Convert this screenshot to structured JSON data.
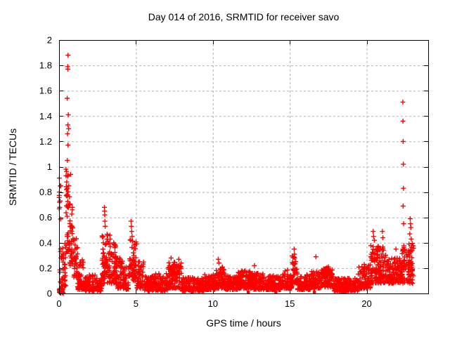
{
  "chart_data": {
    "type": "scatter",
    "title": "Day 014 of 2016, SRMTID for receiver savo",
    "xlabel": "GPS time / hours",
    "ylabel": "SRMTID / TECUs",
    "xlim": [
      0,
      24
    ],
    "ylim": [
      0,
      2
    ],
    "xticks": [
      0,
      5,
      10,
      15,
      20
    ],
    "yticks": [
      0,
      0.2,
      0.4,
      0.6,
      0.8,
      1,
      1.2,
      1.4,
      1.6,
      1.8,
      2
    ],
    "grid": true,
    "grid_color": "#b0b0b0",
    "legend": "none",
    "marker": {
      "shape": "plus",
      "color": "#ff0000",
      "size": 7
    },
    "series_name": "SRMTID",
    "seed": 20160114,
    "notable_points": [
      [
        0.02,
        0.91
      ],
      [
        0.02,
        0.8
      ],
      [
        0.03,
        0.72
      ],
      [
        0.04,
        0.68
      ],
      [
        0.58,
        1.88
      ],
      [
        0.56,
        1.79
      ],
      [
        0.57,
        1.77
      ],
      [
        0.53,
        1.54
      ],
      [
        0.6,
        1.41
      ],
      [
        0.57,
        1.33
      ],
      [
        0.62,
        1.3
      ],
      [
        0.55,
        1.26
      ],
      [
        0.58,
        1.17
      ],
      [
        0.54,
        1.05
      ],
      [
        0.45,
        0.98
      ],
      [
        0.75,
        0.94
      ],
      [
        0.5,
        0.88
      ],
      [
        0.63,
        0.85
      ],
      [
        0.48,
        0.82
      ],
      [
        0.52,
        0.78
      ],
      [
        2.95,
        0.68
      ],
      [
        2.96,
        0.65
      ],
      [
        2.97,
        0.62
      ],
      [
        2.98,
        0.57
      ],
      [
        3.0,
        0.53
      ],
      [
        3.3,
        0.46
      ],
      [
        3.32,
        0.43
      ],
      [
        3.55,
        0.4
      ],
      [
        4.68,
        0.57
      ],
      [
        4.7,
        0.53
      ],
      [
        4.72,
        0.49
      ],
      [
        4.75,
        0.45
      ],
      [
        4.65,
        0.42
      ],
      [
        7.28,
        0.28
      ],
      [
        7.78,
        0.27
      ],
      [
        8.65,
        0.01
      ],
      [
        10.35,
        0.27
      ],
      [
        10.4,
        0.24
      ],
      [
        12.3,
        0.01
      ],
      [
        12.7,
        0.22
      ],
      [
        14.1,
        0.01
      ],
      [
        15.28,
        0.35
      ],
      [
        15.3,
        0.31
      ],
      [
        15.32,
        0.28
      ],
      [
        16.6,
        0.01
      ],
      [
        16.7,
        0.29
      ],
      [
        18.4,
        0.01
      ],
      [
        18.6,
        0.01
      ],
      [
        20.42,
        0.49
      ],
      [
        20.45,
        0.45
      ],
      [
        20.5,
        0.42
      ],
      [
        21.02,
        0.49
      ],
      [
        21.05,
        0.44
      ],
      [
        21.9,
        0.35
      ],
      [
        22.35,
        1.51
      ],
      [
        22.36,
        1.36
      ],
      [
        22.37,
        1.2
      ],
      [
        22.38,
        1.02
      ],
      [
        22.39,
        0.83
      ],
      [
        22.37,
        0.69
      ],
      [
        22.4,
        0.55
      ],
      [
        22.83,
        0.59
      ],
      [
        22.85,
        0.55
      ],
      [
        22.87,
        0.52
      ],
      [
        22.8,
        0.47
      ],
      [
        22.9,
        0.43
      ],
      [
        22.75,
        0.39
      ]
    ],
    "band_profile": [
      [
        0.0,
        0.28,
        0.0,
        0.04,
        120,
        1.0
      ],
      [
        0.0,
        0.12,
        0.55,
        0.92,
        55,
        1.0
      ],
      [
        0.05,
        0.45,
        0.05,
        0.4,
        100,
        1.6
      ],
      [
        0.45,
        0.68,
        0.3,
        1.0,
        150,
        1.3
      ],
      [
        0.68,
        0.95,
        0.22,
        0.72,
        140,
        1.5
      ],
      [
        0.95,
        1.2,
        0.12,
        0.45,
        120,
        1.6
      ],
      [
        1.2,
        1.65,
        0.03,
        0.27,
        110,
        1.7
      ],
      [
        1.65,
        2.35,
        0.02,
        0.15,
        100,
        1.6
      ],
      [
        2.35,
        2.8,
        0.02,
        0.12,
        90,
        1.5
      ],
      [
        2.8,
        3.25,
        0.08,
        0.47,
        130,
        1.4
      ],
      [
        3.25,
        3.7,
        0.08,
        0.4,
        130,
        1.5
      ],
      [
        3.7,
        4.15,
        0.04,
        0.28,
        110,
        1.6
      ],
      [
        4.15,
        4.55,
        0.03,
        0.21,
        100,
        1.6
      ],
      [
        4.55,
        5.05,
        0.1,
        0.44,
        130,
        1.5
      ],
      [
        5.05,
        5.5,
        0.04,
        0.26,
        100,
        1.7
      ],
      [
        5.5,
        6.1,
        0.02,
        0.14,
        100,
        1.5
      ],
      [
        6.1,
        7.05,
        0.02,
        0.16,
        110,
        1.5
      ],
      [
        7.05,
        7.95,
        0.04,
        0.25,
        120,
        1.6
      ],
      [
        7.95,
        8.75,
        0.02,
        0.13,
        110,
        1.5
      ],
      [
        8.75,
        9.45,
        0.02,
        0.12,
        100,
        1.5
      ],
      [
        9.45,
        10.15,
        0.03,
        0.15,
        110,
        1.5
      ],
      [
        10.15,
        10.75,
        0.04,
        0.21,
        115,
        1.6
      ],
      [
        10.75,
        11.65,
        0.03,
        0.14,
        110,
        1.5
      ],
      [
        11.65,
        12.65,
        0.04,
        0.18,
        120,
        1.6
      ],
      [
        12.65,
        13.45,
        0.03,
        0.16,
        110,
        1.5
      ],
      [
        13.45,
        14.45,
        0.03,
        0.14,
        110,
        1.5
      ],
      [
        14.45,
        15.15,
        0.04,
        0.19,
        110,
        1.6
      ],
      [
        15.15,
        15.5,
        0.08,
        0.3,
        110,
        1.4
      ],
      [
        15.5,
        16.35,
        0.03,
        0.15,
        100,
        1.5
      ],
      [
        16.35,
        17.05,
        0.04,
        0.18,
        100,
        1.5
      ],
      [
        17.05,
        17.85,
        0.05,
        0.21,
        110,
        1.6
      ],
      [
        17.85,
        19.45,
        0.02,
        0.12,
        100,
        1.5
      ],
      [
        19.45,
        20.25,
        0.04,
        0.23,
        110,
        1.6
      ],
      [
        20.25,
        21.35,
        0.08,
        0.38,
        130,
        1.5
      ],
      [
        21.35,
        22.3,
        0.08,
        0.28,
        120,
        1.5
      ],
      [
        22.3,
        23.05,
        0.08,
        0.42,
        130,
        1.4
      ]
    ]
  }
}
